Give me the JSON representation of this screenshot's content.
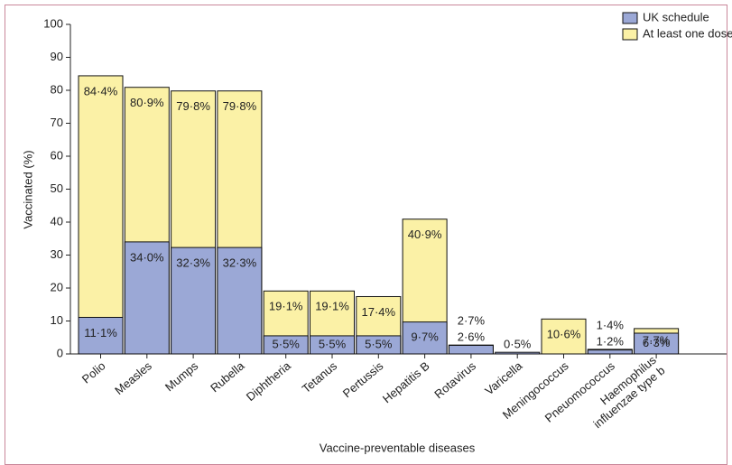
{
  "chart_data": {
    "type": "bar",
    "ylabel": "Vaccinated (%)",
    "xlabel": "Vaccine-preventable diseases",
    "categories": [
      "Polio",
      "Measles",
      "Mumps",
      "Rubella",
      "Diphtheria",
      "Tetanus",
      "Pertussis",
      "Hepatitis B",
      "Rotavirus",
      "Varicella",
      "Meningococcus",
      "Pneuomococcus",
      "Haemophilus influenzae type b"
    ],
    "series": [
      {
        "name": "At least one dose*",
        "color": "#fbf1a6",
        "values": [
          84.4,
          80.9,
          79.8,
          79.8,
          19.1,
          19.1,
          17.4,
          40.9,
          2.7,
          null,
          10.6,
          1.4,
          7.7
        ],
        "value_labels": [
          "84·4%",
          "80·9%",
          "79·8%",
          "79·8%",
          "19·1%",
          "19·1%",
          "17·4%",
          "40·9%",
          "2·7%",
          null,
          "10·6%",
          "1·4%",
          "7·7%"
        ]
      },
      {
        "name": "UK schedule",
        "color": "#9ba8d6",
        "values": [
          11.1,
          34.0,
          32.3,
          32.3,
          5.5,
          5.5,
          5.5,
          9.7,
          2.6,
          0.5,
          null,
          1.2,
          6.3
        ],
        "value_labels": [
          "11·1%",
          "34·0%",
          "32·3%",
          "32·3%",
          "5·5%",
          "5·5%",
          "5·5%",
          "9·7%",
          "2·6%",
          "0·5%",
          null,
          "1·2%",
          "6·3%"
        ]
      }
    ],
    "legend_order": [
      1,
      0
    ],
    "ylim": [
      0,
      100
    ],
    "yticks": [
      0,
      10,
      20,
      30,
      40,
      50,
      60,
      70,
      80,
      90,
      100
    ]
  }
}
